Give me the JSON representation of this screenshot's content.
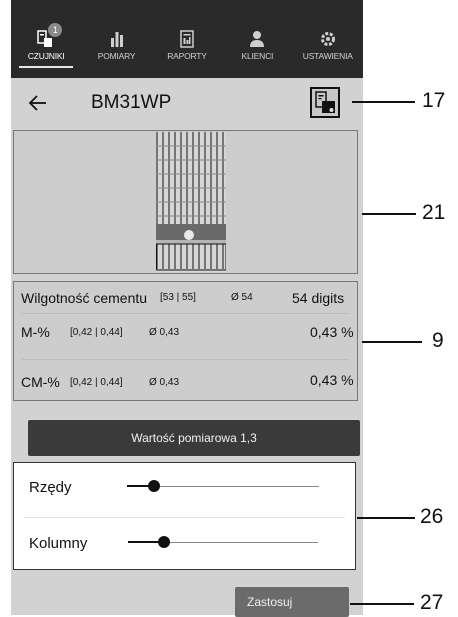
{
  "nav": {
    "items": [
      {
        "label": "CZUJNIKI",
        "icon": "sensor-device-icon",
        "badge": "1",
        "active": true
      },
      {
        "label": "POMIARY",
        "icon": "bar-chart-icon",
        "active": false
      },
      {
        "label": "RAPORTY",
        "icon": "report-icon",
        "active": false
      },
      {
        "label": "KLIENCI",
        "icon": "person-icon",
        "active": false
      },
      {
        "label": "USTAWIENIA",
        "icon": "gear-icon",
        "active": false
      }
    ]
  },
  "header": {
    "title": "BM31WP",
    "back_icon": "back-arrow-icon",
    "device_icon": "device-settings-icon"
  },
  "readings": {
    "moisture": {
      "label": "Wilgotność cementu",
      "range": "[53 | 55]",
      "avg": "Ø 54",
      "value": "54 digits"
    },
    "m_percent": {
      "label": "M-%",
      "range": "[0,42 | 0,44]",
      "avg": "Ø 0,43",
      "value": "0,43 %"
    },
    "cm_percent": {
      "label": "CM-%",
      "range": "[0,42 | 0,44]",
      "avg": "Ø 0,43",
      "value": "0,43 %"
    }
  },
  "measurement_button": {
    "label": "Wartość pomiarowa 1,3"
  },
  "sliders": {
    "rows": {
      "label": "Rzędy",
      "level": 0.14
    },
    "columns": {
      "label": "Kolumny",
      "level": 0.19
    }
  },
  "apply_button": {
    "label": "Zastosuj"
  },
  "callouts": {
    "c17": "17",
    "c21": "21",
    "c9": "9",
    "c26": "26",
    "c27": "27"
  },
  "colors": {
    "navbar": "#2a2a2a",
    "panel": "#d2d2d2",
    "button_dark": "#3a3a3a"
  }
}
